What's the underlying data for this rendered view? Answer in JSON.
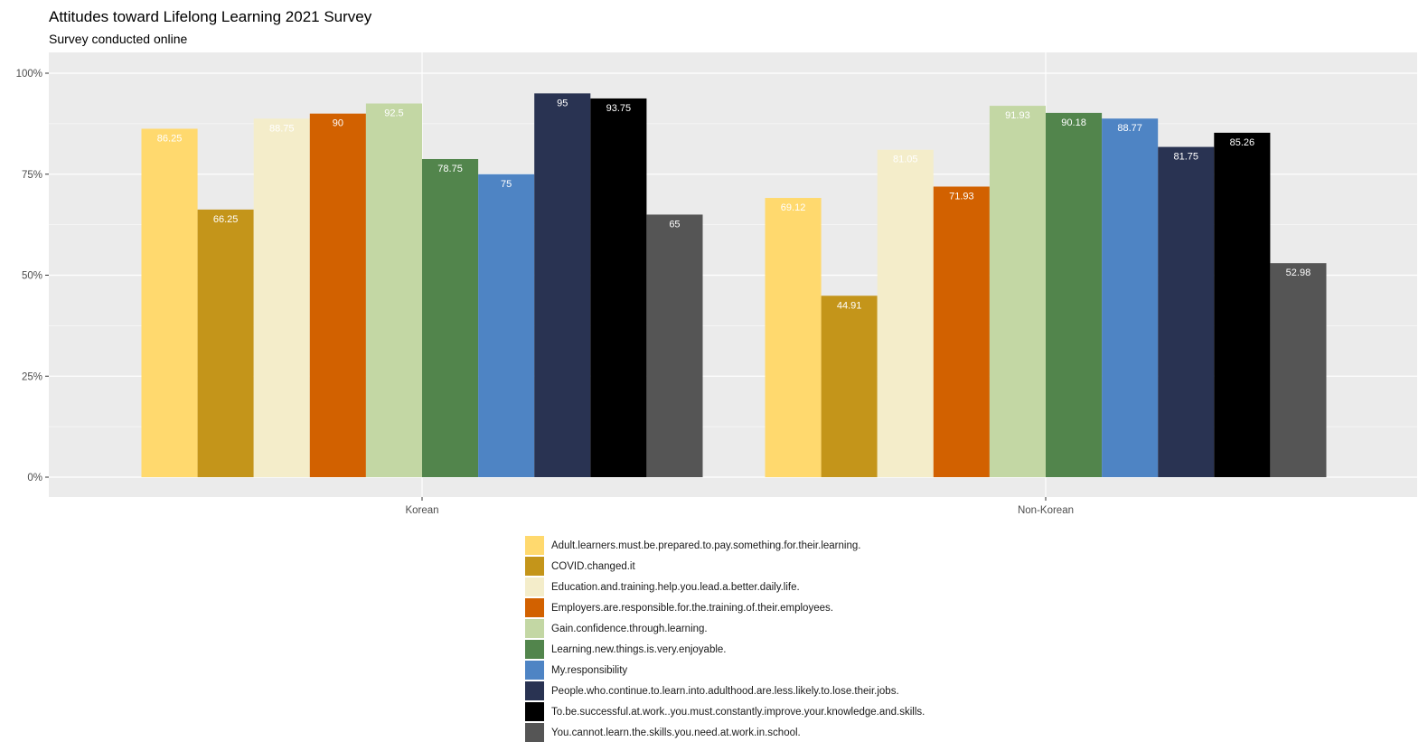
{
  "chart_data": {
    "type": "bar",
    "title": "Attitudes toward Lifelong Learning 2021 Survey",
    "subtitle": "Survey conducted online",
    "xlabel": "",
    "ylabel": "",
    "categories": [
      "Korean",
      "Non-Korean"
    ],
    "ylim": [
      0,
      100
    ],
    "yticks": [
      "0%",
      "25%",
      "50%",
      "75%",
      "100%"
    ],
    "ytick_values": [
      0,
      25,
      50,
      75,
      100
    ],
    "grid": true,
    "legend_position": "bottom",
    "series": [
      {
        "name": "Adult.learners.must.be.prepared.to.pay.something.for.their.learning.",
        "color": "#FFD96E",
        "values": [
          86.25,
          69.12
        ],
        "labels": [
          "86.25",
          "69.12"
        ]
      },
      {
        "name": "COVID.changed.it",
        "color": "#C4951A",
        "values": [
          66.25,
          44.91
        ],
        "labels": [
          "66.25",
          "44.91"
        ]
      },
      {
        "name": "Education.and.training.help.you.lead.a.better.daily.life.",
        "color": "#F4EDCA",
        "values": [
          88.75,
          81.05
        ],
        "labels": [
          "88.75",
          "81.05"
        ]
      },
      {
        "name": "Employers.are.responsible.for.the.training.of.their.employees.",
        "color": "#D26100",
        "values": [
          90,
          71.93
        ],
        "labels": [
          "90",
          "71.93"
        ]
      },
      {
        "name": "Gain.confidence.through.learning.",
        "color": "#C3D7A4",
        "values": [
          92.5,
          91.93
        ],
        "labels": [
          "92.5",
          "91.93"
        ]
      },
      {
        "name": "Learning.new.things.is.very.enjoyable.",
        "color": "#52854C",
        "values": [
          78.75,
          90.18
        ],
        "labels": [
          "78.75",
          "90.18"
        ]
      },
      {
        "name": "My.responsibility",
        "color": "#4E84C4",
        "values": [
          75,
          88.77
        ],
        "labels": [
          "75",
          "88.77"
        ]
      },
      {
        "name": "People.who.continue.to.learn.into.adulthood.are.less.likely.to.lose.their.jobs.",
        "color": "#293352",
        "values": [
          95,
          81.75
        ],
        "labels": [
          "95",
          "81.75"
        ]
      },
      {
        "name": "To.be.successful.at.work..you.must.constantly.improve.your.knowledge.and.skills.",
        "color": "#000000",
        "values": [
          93.75,
          85.26
        ],
        "labels": [
          "93.75",
          "85.26"
        ]
      },
      {
        "name": "You.cannot.learn.the.skills.you.need.at.work.in.school.",
        "color": "#555555",
        "values": [
          65,
          52.98
        ],
        "labels": [
          "65",
          "52.98"
        ]
      }
    ]
  }
}
